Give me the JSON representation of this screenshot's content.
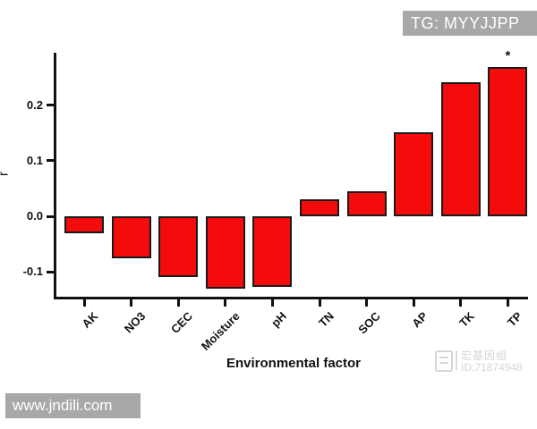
{
  "overlays": {
    "top_right_badge": "TG: MYYJJPP",
    "bottom_left_badge": "www.jndili.com",
    "bottom_right_watermark": {
      "logo_icon": "publisher-logo-icon",
      "line1": "宏基因组",
      "line2": "ID:71874948"
    }
  },
  "chart_data": {
    "type": "bar",
    "title": "",
    "xlabel": "Environmental factor",
    "ylabel": "r",
    "categories": [
      "AK",
      "NO3",
      "CEC",
      "Moisture",
      "pH",
      "TN",
      "SOC",
      "AP",
      "TK",
      "TP"
    ],
    "values": [
      -0.03,
      -0.075,
      -0.11,
      -0.13,
      -0.128,
      0.03,
      0.045,
      0.152,
      0.242,
      0.27
    ],
    "ylim": [
      -0.145,
      0.295
    ],
    "yticks": [
      -0.1,
      0.0,
      0.1,
      0.2
    ],
    "ytick_format_decimals": 1,
    "grid": false,
    "legend": null,
    "bar_color": "#f40b0b",
    "bar_border_color": "#1a1a1a",
    "axis_color": "#111111",
    "annotations": [
      {
        "category": "TP",
        "text": "*"
      }
    ]
  }
}
